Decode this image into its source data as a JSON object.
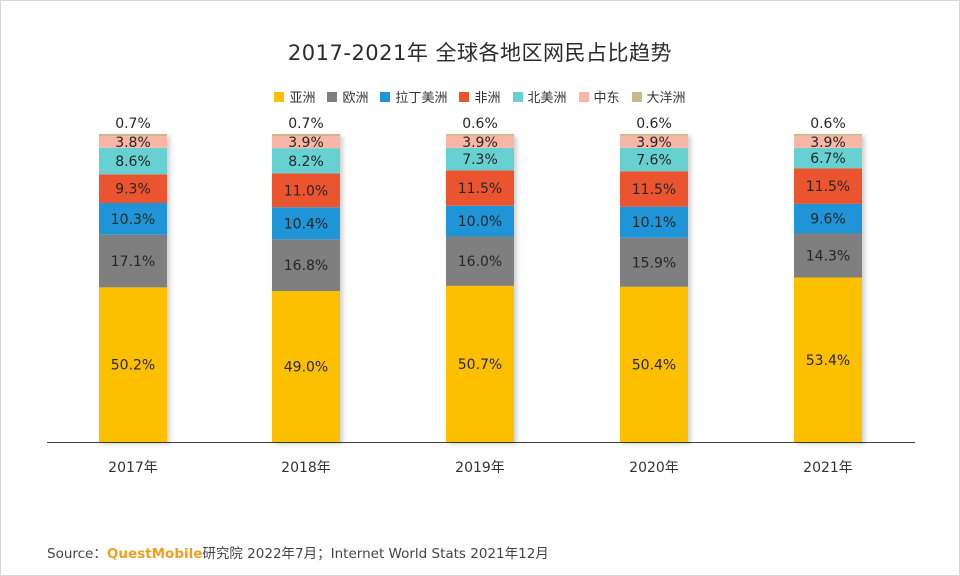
{
  "chart_data": {
    "type": "bar",
    "stacked": true,
    "title": "2017-2021年 全球各地区网民占比趋势",
    "categories": [
      "2017年",
      "2018年",
      "2019年",
      "2020年",
      "2021年"
    ],
    "ylim": [
      0,
      100
    ],
    "unit": "%",
    "legend_position": "top",
    "grid": false,
    "series": [
      {
        "name": "亚洲",
        "color": "#fcc000",
        "values": [
          50.2,
          49.0,
          50.7,
          50.4,
          53.4
        ]
      },
      {
        "name": "欧洲",
        "color": "#7f7f7f",
        "values": [
          17.1,
          16.8,
          16.0,
          15.9,
          14.3
        ]
      },
      {
        "name": "拉丁美洲",
        "color": "#1f94d6",
        "values": [
          10.3,
          10.4,
          10.0,
          10.1,
          9.6
        ]
      },
      {
        "name": "非洲",
        "color": "#ea5530",
        "values": [
          9.3,
          11.0,
          11.5,
          11.5,
          11.5
        ]
      },
      {
        "name": "北美洲",
        "color": "#66d1d0",
        "values": [
          8.6,
          8.2,
          7.3,
          7.6,
          6.7
        ]
      },
      {
        "name": "中东",
        "color": "#f9b5a5",
        "values": [
          3.8,
          3.9,
          3.9,
          3.9,
          3.9
        ]
      },
      {
        "name": "大洋洲",
        "color": "#c8b98a",
        "values": [
          0.7,
          0.7,
          0.6,
          0.6,
          0.6
        ]
      }
    ]
  },
  "source": {
    "prefix": "Source：",
    "brand": "QuestMobile",
    "rest": "研究院 2022年7月；Internet World Stats 2021年12月"
  }
}
